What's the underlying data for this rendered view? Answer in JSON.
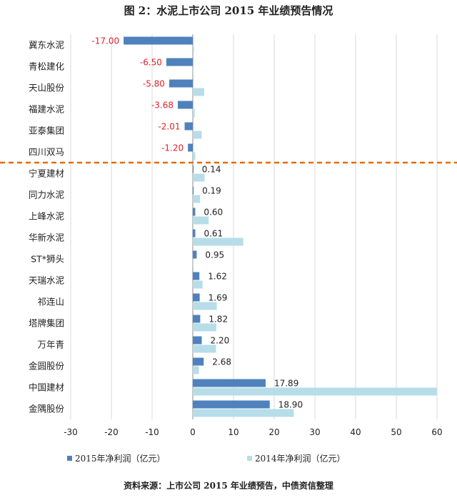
{
  "title": "图 2：水泥上市公司 2015 年业绩预告情况",
  "source_note": "资料来源：上市公司 2015 年业绩预告，中债资信整理",
  "colors": {
    "series_2015": "#4f81bd",
    "series_2014": "#b7dee8",
    "negative_label": "#e0202a",
    "positive_label": "#222222",
    "divider": "#e46c0a",
    "grid": "#d9d9d9"
  },
  "chart_data": {
    "type": "bar",
    "orientation": "horizontal",
    "categories": [
      "冀东水泥",
      "青松建化",
      "天山股份",
      "福建水泥",
      "亚泰集团",
      "四川双马",
      "宁夏建材",
      "同力水泥",
      "上峰水泥",
      "华新水泥",
      "ST*狮头",
      "天瑞水泥",
      "祁连山",
      "塔牌集团",
      "万年青",
      "金圆股份",
      "中国建材",
      "金隅股份"
    ],
    "series": [
      {
        "name": "2015年净利润（亿元）",
        "values": [
          -17.0,
          -6.5,
          -5.8,
          -3.68,
          -2.01,
          -1.2,
          0.14,
          0.19,
          0.6,
          0.61,
          0.95,
          1.62,
          1.69,
          1.82,
          2.2,
          2.68,
          17.89,
          18.9
        ]
      },
      {
        "name": "2014年净利润（亿元）",
        "values": [
          0.3,
          0.1,
          2.8,
          0.5,
          2.2,
          0.6,
          2.9,
          1.8,
          3.9,
          12.4,
          0.0,
          2.4,
          5.9,
          5.8,
          5.7,
          1.5,
          60.0,
          24.8
        ]
      }
    ],
    "data_labels": [
      "-17.00",
      "-6.50",
      "-5.80",
      "-3.68",
      "-2.01",
      "-1.20",
      "0.14",
      "0.19",
      "0.60",
      "0.61",
      "0.95",
      "1.62",
      "1.69",
      "1.82",
      "2.20",
      "2.68",
      "17.89",
      "18.90"
    ],
    "xlim": [
      -30,
      60
    ],
    "xticks": [
      "-30",
      "-20",
      "-10",
      "0",
      "10",
      "20",
      "30",
      "40",
      "50",
      "60"
    ],
    "grid": "vertical",
    "legend_position": "bottom",
    "divider_after_index": 5
  }
}
